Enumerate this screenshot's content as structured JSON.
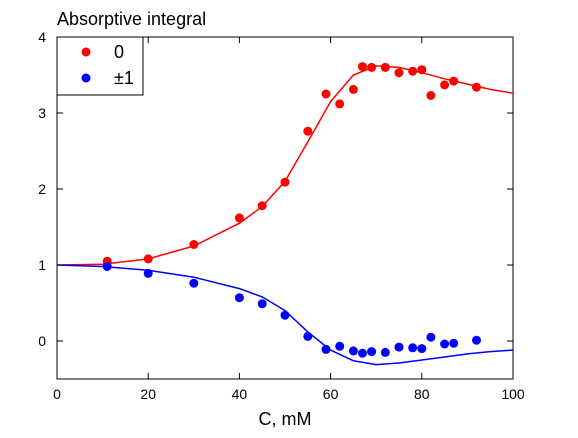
{
  "chart_data": {
    "type": "scatter",
    "title": "",
    "ylabel": "Absorptive integral",
    "xlabel": "C, mM",
    "xlim": [
      0,
      100
    ],
    "ylim": [
      -0.5,
      4
    ],
    "x_ticks": [
      0,
      20,
      40,
      60,
      80,
      100
    ],
    "y_ticks": [
      0,
      1,
      2,
      3,
      4
    ],
    "grid": false,
    "legend_position": "top-left",
    "series": [
      {
        "name": "0",
        "color": "#ff0000",
        "points": [
          [
            11,
            1.05
          ],
          [
            20,
            1.08
          ],
          [
            30,
            1.27
          ],
          [
            40,
            1.62
          ],
          [
            45,
            1.78
          ],
          [
            50,
            2.09
          ],
          [
            55,
            2.76
          ],
          [
            59,
            3.25
          ],
          [
            62,
            3.12
          ],
          [
            65,
            3.31
          ],
          [
            67,
            3.61
          ],
          [
            69,
            3.6
          ],
          [
            72,
            3.6
          ],
          [
            75,
            3.53
          ],
          [
            78,
            3.55
          ],
          [
            80,
            3.57
          ],
          [
            82,
            3.23
          ],
          [
            85,
            3.37
          ],
          [
            87,
            3.42
          ],
          [
            92,
            3.34
          ]
        ],
        "fit": [
          [
            0,
            1.0
          ],
          [
            10,
            1.01
          ],
          [
            20,
            1.08
          ],
          [
            30,
            1.25
          ],
          [
            40,
            1.55
          ],
          [
            45,
            1.77
          ],
          [
            50,
            2.1
          ],
          [
            55,
            2.62
          ],
          [
            60,
            3.15
          ],
          [
            65,
            3.5
          ],
          [
            70,
            3.62
          ],
          [
            75,
            3.6
          ],
          [
            80,
            3.53
          ],
          [
            85,
            3.45
          ],
          [
            90,
            3.38
          ],
          [
            95,
            3.31
          ],
          [
            100,
            3.26
          ]
        ]
      },
      {
        "name": "±1",
        "color": "#0000ff",
        "points": [
          [
            11,
            0.98
          ],
          [
            20,
            0.89
          ],
          [
            30,
            0.76
          ],
          [
            40,
            0.57
          ],
          [
            45,
            0.49
          ],
          [
            50,
            0.34
          ],
          [
            55,
            0.06
          ],
          [
            59,
            -0.11
          ],
          [
            62,
            -0.07
          ],
          [
            65,
            -0.13
          ],
          [
            67,
            -0.16
          ],
          [
            69,
            -0.14
          ],
          [
            72,
            -0.15
          ],
          [
            75,
            -0.08
          ],
          [
            78,
            -0.09
          ],
          [
            80,
            -0.1
          ],
          [
            82,
            0.05
          ],
          [
            85,
            -0.04
          ],
          [
            87,
            -0.03
          ],
          [
            92,
            0.01
          ]
        ],
        "fit": [
          [
            0,
            1.0
          ],
          [
            10,
            0.98
          ],
          [
            20,
            0.93
          ],
          [
            30,
            0.84
          ],
          [
            40,
            0.69
          ],
          [
            45,
            0.58
          ],
          [
            50,
            0.4
          ],
          [
            55,
            0.12
          ],
          [
            60,
            -0.12
          ],
          [
            65,
            -0.26
          ],
          [
            70,
            -0.31
          ],
          [
            75,
            -0.29
          ],
          [
            80,
            -0.25
          ],
          [
            85,
            -0.21
          ],
          [
            90,
            -0.17
          ],
          [
            95,
            -0.14
          ],
          [
            100,
            -0.12
          ]
        ]
      }
    ]
  }
}
